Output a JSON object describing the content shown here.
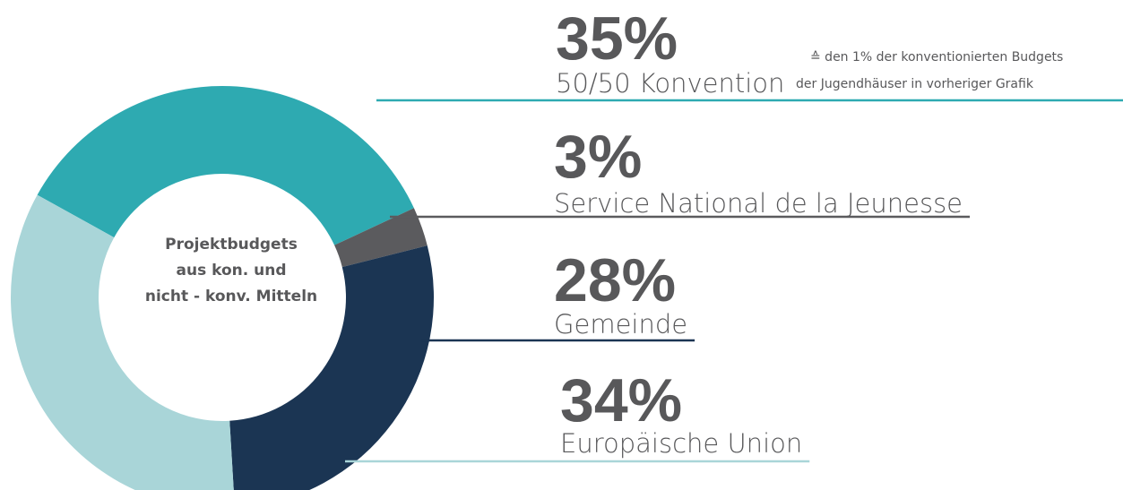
{
  "chart_data": {
    "type": "donut",
    "center_label": [
      "Projektbudgets",
      "aus kon. und",
      "nicht - konv. Mitteln"
    ],
    "categories": [
      "50/50 Konvention",
      "Service National de la Jeunesse",
      "Gemeinde",
      "Europäische Union"
    ],
    "values": [
      35,
      3,
      28,
      34
    ],
    "value_labels": [
      "35%",
      "3%",
      "28%",
      "34%"
    ],
    "colors": [
      "#2eaab1",
      "#5b5b5e",
      "#1b3553",
      "#a9d5d8"
    ],
    "annotation": [
      "≙ den 1% der konventionierten Budgets",
      "der Jugendhäuser in vorheriger Grafik"
    ]
  }
}
